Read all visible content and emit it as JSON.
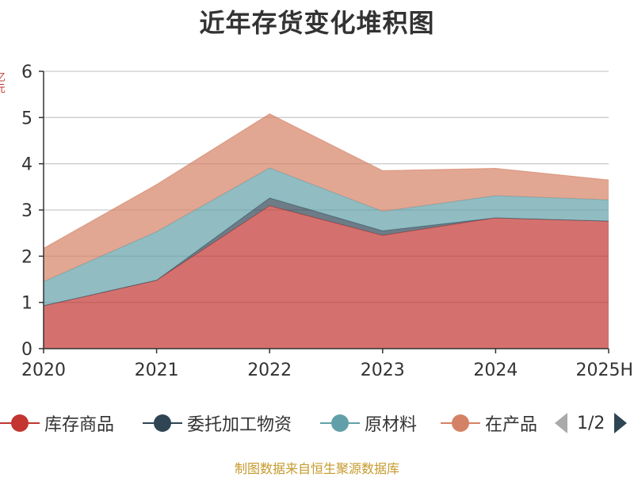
{
  "title": "近年存货变化堆积图",
  "y_unit": "亿元",
  "source": "制图数据来自恒生聚源数据库",
  "pager": {
    "text": "1/2"
  },
  "legend": [
    {
      "name": "库存商品",
      "color": "#c23531"
    },
    {
      "name": "委托加工物资",
      "color": "#2f4554"
    },
    {
      "name": "原材料",
      "color": "#61a0a8"
    },
    {
      "name": "在产品",
      "color": "#d48265"
    }
  ],
  "chart_data": {
    "type": "area",
    "stacked": true,
    "title": "近年存货变化堆积图",
    "categories": [
      "2020",
      "2021",
      "2022",
      "2023",
      "2024",
      "2025H"
    ],
    "ylim": [
      0,
      6
    ],
    "yticks": [
      "0",
      "1",
      "2",
      "3",
      "4",
      "5",
      "6"
    ],
    "grid": true,
    "legend_position": "bottom",
    "series": [
      {
        "name": "库存商品",
        "color": "#c23531",
        "values": [
          0.93,
          1.48,
          3.09,
          2.45,
          2.83,
          2.76
        ]
      },
      {
        "name": "委托加工物资",
        "color": "#2f4554",
        "values": [
          0.0,
          0.0,
          0.17,
          0.1,
          0.0,
          0.0
        ]
      },
      {
        "name": "原材料",
        "color": "#61a0a8",
        "values": [
          0.52,
          1.05,
          0.65,
          0.42,
          0.48,
          0.46
        ]
      },
      {
        "name": "在产品",
        "color": "#d48265",
        "values": [
          0.72,
          1.02,
          1.17,
          0.88,
          0.59,
          0.43
        ]
      }
    ]
  }
}
